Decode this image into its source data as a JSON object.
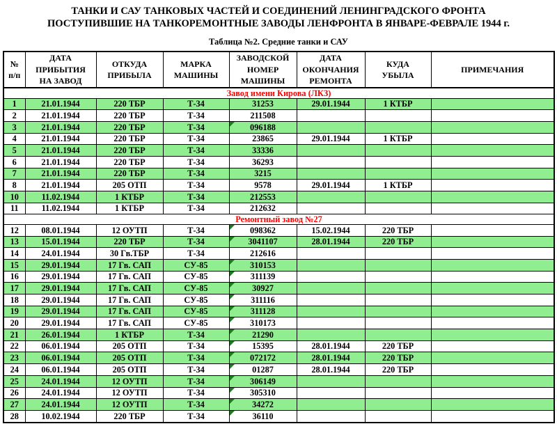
{
  "title_line1": "ТАНКИ И САУ ТАНКОВЫХ ЧАСТЕЙ И СОЕДИНЕНИЙ ЛЕНИНГРАДСКОГО ФРОНТА",
  "title_line2": "ПОСТУПИВШИЕ НА ТАНКОРЕМОНТНЫЕ ЗАВОДЫ ЛЕНФРОНТА В ЯНВАРЕ-ФЕВРАЛЕ 1944 г.",
  "subtitle": "Таблица №2. Средние танки и САУ",
  "columns": [
    "№\nп/п",
    "ДАТА\nПРИБЫТИЯ\nНА ЗАВОД",
    "ОТКУДА\nПРИБЫЛА",
    "МАРКА\nМАШИНЫ",
    "ЗАВОДСКОЙ\nНОМЕР\nМАШИНЫ",
    "ДАТА\nОКОНЧАНИЯ\nРЕМОНТА",
    "КУДА\nУБЫЛА",
    "ПРИМЕЧАНИЯ"
  ],
  "colors": {
    "row_highlight": "#90EE90",
    "section_title": "#FF0000",
    "serial_flag": "#1E7B1E"
  },
  "sections": [
    {
      "name": "Завод имени Кирова (ЛКЗ)",
      "rows": [
        {
          "no": "1",
          "date_in": "21.01.1944",
          "unit_from": "220 ТБР",
          "model": "Т-34",
          "serial": "31253",
          "date_out": "29.01.1944",
          "unit_to": "1 КТБР",
          "note": "",
          "shaded": true,
          "serial_flag": false
        },
        {
          "no": "2",
          "date_in": "21.01.1944",
          "unit_from": "220 ТБР",
          "model": "Т-34",
          "serial": "211508",
          "date_out": "",
          "unit_to": "",
          "note": "",
          "shaded": false,
          "serial_flag": false
        },
        {
          "no": "3",
          "date_in": "21.01.1944",
          "unit_from": "220 ТБР",
          "model": "Т-34",
          "serial": "096188",
          "date_out": "",
          "unit_to": "",
          "note": "",
          "shaded": true,
          "serial_flag": true
        },
        {
          "no": "4",
          "date_in": "21.01.1944",
          "unit_from": "220 ТБР",
          "model": "Т-34",
          "serial": "23865",
          "date_out": "29.01.1944",
          "unit_to": "1 КТБР",
          "note": "",
          "shaded": false,
          "serial_flag": false
        },
        {
          "no": "5",
          "date_in": "21.01.1944",
          "unit_from": "220 ТБР",
          "model": "Т-34",
          "serial": "33336",
          "date_out": "",
          "unit_to": "",
          "note": "",
          "shaded": true,
          "serial_flag": false
        },
        {
          "no": "6",
          "date_in": "21.01.1944",
          "unit_from": "220 ТБР",
          "model": "Т-34",
          "serial": "36293",
          "date_out": "",
          "unit_to": "",
          "note": "",
          "shaded": false,
          "serial_flag": false
        },
        {
          "no": "7",
          "date_in": "21.01.1944",
          "unit_from": "220 ТБР",
          "model": "Т-34",
          "serial": "3215",
          "date_out": "",
          "unit_to": "",
          "note": "",
          "shaded": true,
          "serial_flag": false
        },
        {
          "no": "8",
          "date_in": "21.01.1944",
          "unit_from": "205 ОТП",
          "model": "Т-34",
          "serial": "9578",
          "date_out": "29.01.1944",
          "unit_to": "1 КТБР",
          "note": "",
          "shaded": false,
          "serial_flag": false
        },
        {
          "no": "10",
          "date_in": "11.02.1944",
          "unit_from": "1 КТБР",
          "model": "Т-34",
          "serial": "212553",
          "date_out": "",
          "unit_to": "",
          "note": "",
          "shaded": true,
          "serial_flag": false
        },
        {
          "no": "11",
          "date_in": "11.02.1944",
          "unit_from": "1 КТБР",
          "model": "Т-34",
          "serial": "212632",
          "date_out": "",
          "unit_to": "",
          "note": "",
          "shaded": false,
          "serial_flag": false
        }
      ]
    },
    {
      "name": "Ремонтный завод №27",
      "rows": [
        {
          "no": "12",
          "date_in": "08.01.1944",
          "unit_from": "12 ОУТП",
          "model": "Т-34",
          "serial": "098362",
          "date_out": "15.02.1944",
          "unit_to": "220 ТБР",
          "note": "",
          "shaded": false,
          "serial_flag": true
        },
        {
          "no": "13",
          "date_in": "15.01.1944",
          "unit_from": "220 ТБР",
          "model": "Т-34",
          "serial": "3041107",
          "date_out": "28.01.1944",
          "unit_to": "220 ТБР",
          "note": "",
          "shaded": true,
          "serial_flag": true
        },
        {
          "no": "14",
          "date_in": "24.01.1944",
          "unit_from": "30 Гв.ТБР",
          "model": "Т-34",
          "serial": "212616",
          "date_out": "",
          "unit_to": "",
          "note": "",
          "shaded": false,
          "serial_flag": false
        },
        {
          "no": "15",
          "date_in": "29.01.1944",
          "unit_from": "17 Гв. САП",
          "model": "СУ-85",
          "serial": "310153",
          "date_out": "",
          "unit_to": "",
          "note": "",
          "shaded": true,
          "serial_flag": true
        },
        {
          "no": "16",
          "date_in": "29.01.1944",
          "unit_from": "17 Гв. САП",
          "model": "СУ-85",
          "serial": "311139",
          "date_out": "",
          "unit_to": "",
          "note": "",
          "shaded": false,
          "serial_flag": true
        },
        {
          "no": "17",
          "date_in": "29.01.1944",
          "unit_from": "17 Гв. САП",
          "model": "СУ-85",
          "serial": "30927",
          "date_out": "",
          "unit_to": "",
          "note": "",
          "shaded": true,
          "serial_flag": true
        },
        {
          "no": "18",
          "date_in": "29.01.1944",
          "unit_from": "17 Гв. САП",
          "model": "СУ-85",
          "serial": "311116",
          "date_out": "",
          "unit_to": "",
          "note": "",
          "shaded": false,
          "serial_flag": true
        },
        {
          "no": "19",
          "date_in": "29.01.1944",
          "unit_from": "17 Гв. САП",
          "model": "СУ-85",
          "serial": "311128",
          "date_out": "",
          "unit_to": "",
          "note": "",
          "shaded": true,
          "serial_flag": true
        },
        {
          "no": "20",
          "date_in": "29.01.1944",
          "unit_from": "17 Гв. САП",
          "model": "СУ-85",
          "serial": "310173",
          "date_out": "",
          "unit_to": "",
          "note": "",
          "shaded": false,
          "serial_flag": true
        },
        {
          "no": "21",
          "date_in": "26.01.1944",
          "unit_from": "1 КТБР",
          "model": "Т-34",
          "serial": "21290",
          "date_out": "",
          "unit_to": "",
          "note": "",
          "shaded": true,
          "serial_flag": true
        },
        {
          "no": "22",
          "date_in": "06.01.1944",
          "unit_from": "205 ОТП",
          "model": "Т-34",
          "serial": "15395",
          "date_out": "28.01.1944",
          "unit_to": "220 ТБР",
          "note": "",
          "shaded": false,
          "serial_flag": true
        },
        {
          "no": "23",
          "date_in": "06.01.1944",
          "unit_from": "205 ОТП",
          "model": "Т-34",
          "serial": "072172",
          "date_out": "28.01.1944",
          "unit_to": "220 ТБР",
          "note": "",
          "shaded": true,
          "serial_flag": true
        },
        {
          "no": "24",
          "date_in": "06.01.1944",
          "unit_from": "205 ОТП",
          "model": "Т-34",
          "serial": "01287",
          "date_out": "28.01.1944",
          "unit_to": "220 ТБР",
          "note": "",
          "shaded": false,
          "serial_flag": true
        },
        {
          "no": "25",
          "date_in": "24.01.1944",
          "unit_from": "12 ОУТП",
          "model": "Т-34",
          "serial": "306149",
          "date_out": "",
          "unit_to": "",
          "note": "",
          "shaded": true,
          "serial_flag": true
        },
        {
          "no": "26",
          "date_in": "24.01.1944",
          "unit_from": "12 ОУТП",
          "model": "Т-34",
          "serial": "305310",
          "date_out": "",
          "unit_to": "",
          "note": "",
          "shaded": false,
          "serial_flag": true
        },
        {
          "no": "27",
          "date_in": "24.01.1944",
          "unit_from": "12 ОУТП",
          "model": "Т-34",
          "serial": "34272",
          "date_out": "",
          "unit_to": "",
          "note": "",
          "shaded": true,
          "serial_flag": true
        },
        {
          "no": "28",
          "date_in": "10.02.1944",
          "unit_from": "220 ТБР",
          "model": "Т-34",
          "serial": "36110",
          "date_out": "",
          "unit_to": "",
          "note": "",
          "shaded": false,
          "serial_flag": true
        }
      ]
    }
  ]
}
